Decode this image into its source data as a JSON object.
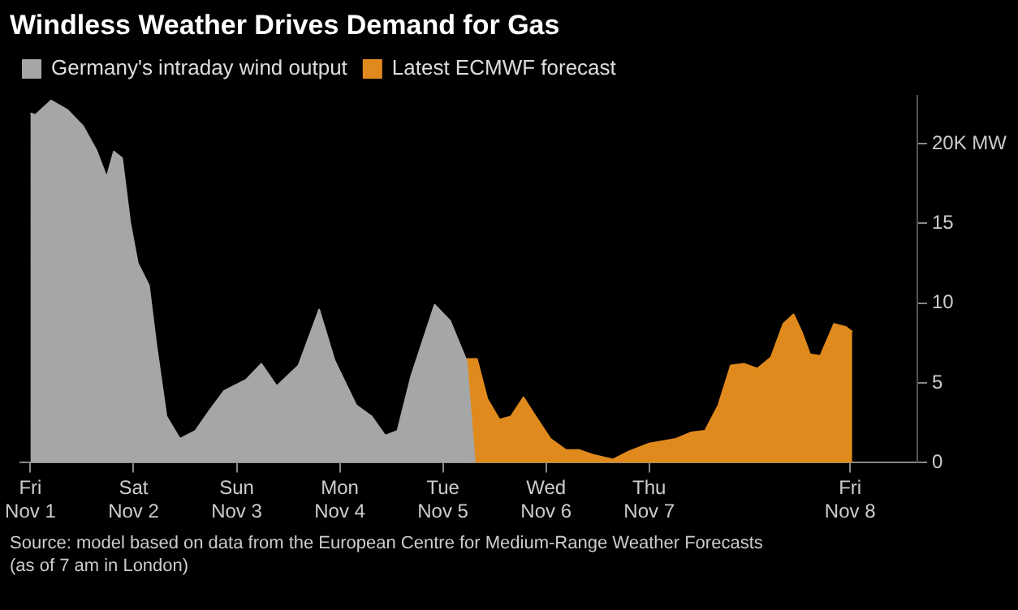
{
  "chart_data": {
    "type": "area",
    "title": "Windless Weather Drives Demand for Gas",
    "annotations": [
      "Source: model based on data from the European Centre for Medium-Range Weather Forecasts (as of 7 am in London)"
    ],
    "legend": "top left",
    "grid": false,
    "xlim": [
      "--10-31T21:36",
      "--11-09T14:24"
    ],
    "xticks": [
      {
        "value": "--11-01",
        "label": "Fri\nNov 1"
      },
      {
        "value": "--11-02",
        "label": "Sat\nNov 2"
      },
      {
        "value": "--11-03",
        "label": "Sun\nNov 3"
      },
      {
        "value": "--11-04",
        "label": "Mon\nNov 4"
      },
      {
        "value": "--11-05",
        "label": "Tue\nNov 5"
      },
      {
        "value": "--11-06",
        "label": "Wed\nNov 6"
      },
      {
        "value": "--11-07",
        "label": "Thu\nNov 7"
      },
      {
        "value": "--11-08T22:45",
        "label": "Fri\nNov 8"
      }
    ],
    "ylim": [
      0,
      23
    ],
    "yticks": [
      0,
      5,
      10,
      15,
      {
        "value": 20,
        "label": "20K MW"
      }
    ],
    "series": [
      {
        "name": "Germany's intraday wind output",
        "color": "#a6a6a6",
        "x": [
          "--11-01T00:00",
          "--11-01T01:12",
          "--11-01T04:48",
          "--11-01T08:40",
          "--11-01T12:15",
          "--11-01T15:20",
          "--11-01T17:45",
          "--11-01T19:25",
          "--11-01T21:20",
          "--11-01T23:15",
          "--11-02T01:00",
          "--11-02T03:36",
          "--11-02T05:15",
          "--11-02T07:40",
          "--11-02T10:48",
          "--11-02T14:24",
          "--11-02T17:30",
          "--11-02T21:05",
          "--11-03T02:10",
          "--11-03T05:45",
          "--11-03T09:20",
          "--11-03T14:24",
          "--11-03T19:12",
          "--11-03T22:48",
          "--11-04T03:50",
          "--11-04T07:25",
          "--11-04T10:35",
          "--11-04T13:25",
          "--11-04T16:35",
          "--11-04T22:05",
          "--11-05T01:40",
          "--11-05T05:30",
          "--11-05T07:25"
        ],
        "values": [
          21.9,
          21.8,
          22.7,
          22.1,
          21.1,
          19.6,
          17.9,
          19.5,
          19.1,
          15,
          12.5,
          11.1,
          7.5,
          2.9,
          1.5,
          2,
          3.2,
          4.5,
          5.2,
          6.2,
          4.8,
          6.1,
          9.6,
          6.4,
          3.6,
          2.9,
          1.7,
          2,
          5.4,
          9.9,
          8.9,
          6.4,
          0
        ]
      },
      {
        "name": "Latest ECMWF forecast",
        "color": "#e08a1e",
        "x": [
          "--11-05T05:30",
          "--11-05T07:55",
          "--11-05T10:20",
          "--11-05T13:10",
          "--11-05T15:50",
          "--11-05T18:45",
          "--11-05T21:20",
          "--11-06T01:00",
          "--11-06T04:35",
          "--11-06T07:40",
          "--11-06T10:48",
          "--11-06T15:36",
          "--11-06T19:12",
          "--11-07T00:00",
          "--11-07T06:15",
          "--11-07T09:50",
          "--11-07T13:00",
          "--11-07T16:05",
          "--11-07T19:00",
          "--11-07T22:05",
          "--11-08T01:12",
          "--11-08T04:20",
          "--11-08T07:12",
          "--11-08T09:36",
          "--11-08T11:30",
          "--11-08T13:25",
          "--11-08T15:50",
          "--11-08T19:00",
          "--11-08T21:50",
          "--11-08T23:15"
        ],
        "values": [
          6.5,
          6.5,
          4,
          2.7,
          2.9,
          4.1,
          3,
          1.5,
          0.8,
          0.8,
          0.5,
          0.2,
          0.7,
          1.2,
          1.5,
          1.9,
          2,
          3.6,
          6.1,
          6.2,
          5.9,
          6.6,
          8.7,
          9.3,
          8.2,
          6.8,
          6.7,
          8.7,
          8.5,
          8.2
        ]
      }
    ]
  }
}
